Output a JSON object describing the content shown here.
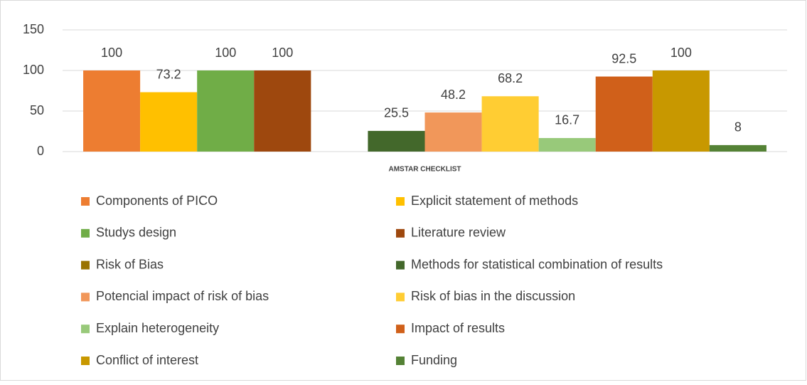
{
  "chart_data": {
    "type": "bar",
    "categories": [
      "AMSTAR CHECKLIST"
    ],
    "series": [
      {
        "name": "Components of PICO",
        "color": "#ED7D31",
        "values": [
          100
        ]
      },
      {
        "name": "Explicit statement of methods",
        "color": "#FFC000",
        "values": [
          73.2
        ]
      },
      {
        "name": "Studys design",
        "color": "#70AD47",
        "values": [
          100
        ]
      },
      {
        "name": "Literature review",
        "color": "#9E480E",
        "values": [
          100
        ]
      },
      {
        "name": "Risk of Bias",
        "color": "#997300",
        "values": [
          null
        ]
      },
      {
        "name": "Methods for statistical combination of results",
        "color": "#43682B",
        "values": [
          25.5
        ]
      },
      {
        "name": "Potencial impact of risk of bias",
        "color": "#F1975A",
        "values": [
          48.2
        ]
      },
      {
        "name": "Risk of bias in the discussion",
        "color": "#FFCD33",
        "values": [
          68.2
        ]
      },
      {
        "name": "Explain heterogeneity",
        "color": "#98C97A",
        "values": [
          16.7
        ]
      },
      {
        "name": "Impact of results",
        "color": "#D0601A",
        "values": [
          92.5
        ]
      },
      {
        "name": "Conflict of interest",
        "color": "#C89800",
        "values": [
          100
        ]
      },
      {
        "name": "Funding",
        "color": "#548235",
        "values": [
          8
        ]
      }
    ],
    "ylim": [
      0,
      150
    ],
    "yticks": [
      0,
      50,
      100,
      150
    ],
    "grid": true,
    "legend": "bottom"
  }
}
